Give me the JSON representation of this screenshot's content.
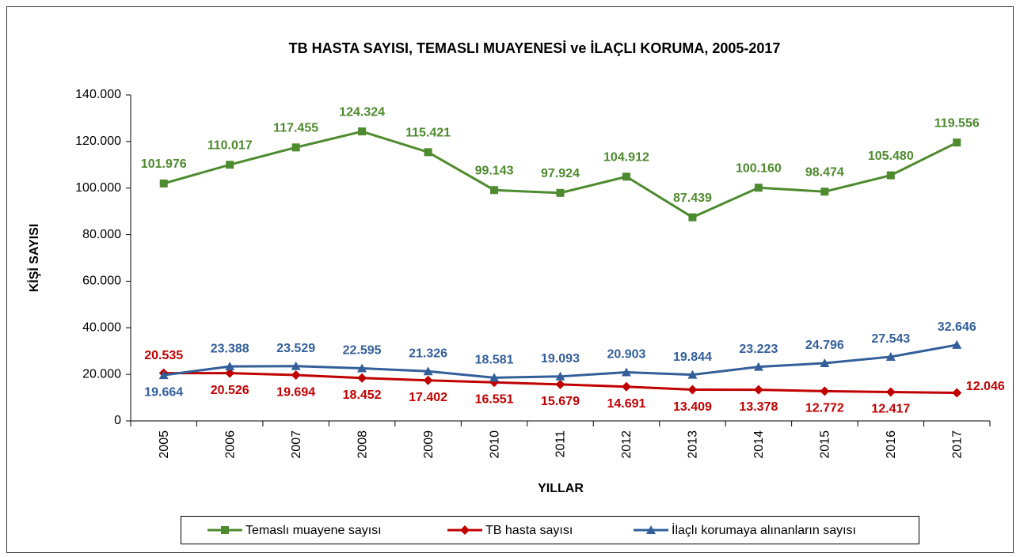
{
  "chart_data": {
    "type": "line",
    "title": "TB HASTA SAYISI, TEMASLI MUAYENESİ ve İLAÇLI KORUMA, 2005-2017",
    "x_label": "YILLAR",
    "y_label": "KİŞİ SAYISI",
    "categories": [
      "2005",
      "2006",
      "2007",
      "2008",
      "2009",
      "2010",
      "2011",
      "2012",
      "2013",
      "2014",
      "2015",
      "2016",
      "2017"
    ],
    "ylim": [
      0,
      140000
    ],
    "yticks": [
      0,
      {
        "value": 20000,
        "label": "20.000"
      },
      {
        "value": 40000,
        "label": "40.000"
      },
      {
        "value": 60000,
        "label": "60.000"
      },
      {
        "value": 80000,
        "label": "80.000"
      },
      {
        "value": 100000,
        "label": "100.000"
      },
      {
        "value": 120000,
        "label": "120.000"
      },
      {
        "value": 140000,
        "label": "140.000"
      }
    ],
    "grid": false,
    "legend": "bottom",
    "series": [
      {
        "name": "Temaslı muayene sayısı",
        "color": "#4e8a2e",
        "marker": "square",
        "values": [
          101976,
          110017,
          117455,
          124324,
          115421,
          99143,
          97924,
          104912,
          87439,
          100160,
          98474,
          105480,
          119556
        ],
        "value_labels": [
          "101.976",
          "110.017",
          "117.455",
          "124.324",
          "115.421",
          "99.143",
          "97.924",
          "104.912",
          "87.439",
          "100.160",
          "98.474",
          "105.480",
          "119.556"
        ]
      },
      {
        "name": "TB hasta sayısı",
        "color": "#c00000",
        "marker": "diamond",
        "values": [
          20535,
          20526,
          19694,
          18452,
          17402,
          16551,
          15679,
          14691,
          13409,
          13378,
          12772,
          12417,
          12046
        ],
        "value_labels": [
          "20.535",
          "20.526",
          "19.694",
          "18.452",
          "17.402",
          "16.551",
          "15.679",
          "14.691",
          "13.409",
          "13.378",
          "12.772",
          "12.417",
          "12.046"
        ]
      },
      {
        "name": "İlaçlı korumaya alınanların sayısı",
        "color": "#335f99",
        "marker": "triangle",
        "values": [
          19664,
          23388,
          23529,
          22595,
          21326,
          18581,
          19093,
          20903,
          19844,
          23223,
          24796,
          27543,
          32646
        ],
        "value_labels": [
          "19.664",
          "23.388",
          "23.529",
          "22.595",
          "21.326",
          "18.581",
          "19.093",
          "20.903",
          "19.844",
          "23.223",
          "24.796",
          "27.543",
          "32.646"
        ]
      }
    ]
  }
}
